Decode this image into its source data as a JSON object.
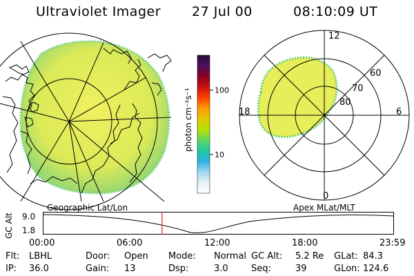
{
  "header": {
    "title": "Ultraviolet Imager",
    "date": "27 Jul 00",
    "time": "08:10:09 UT"
  },
  "colorbar": {
    "unit_label": "photon cm⁻²s⁻¹",
    "ticks": [
      {
        "label": "100",
        "value": 100
      },
      {
        "label": "10",
        "value": 10
      }
    ],
    "colors": [
      "#2a0a3a",
      "#4a1060",
      "#8a0020",
      "#cc1010",
      "#ff4000",
      "#ff9a00",
      "#e0c800",
      "#b8e000",
      "#60d860",
      "#20c8a0",
      "#30b0e0",
      "#a0d8f0",
      "#e6f0f8",
      "#ffffff"
    ]
  },
  "geo_map": {
    "label": "Geographic Lat/Lon",
    "fill_color": "#e6ee5a",
    "edge_color": "#5fc878"
  },
  "polar_map": {
    "label": "Apex MLat/MLT",
    "mlt_labels": [
      {
        "text": "12",
        "pos": "top"
      },
      {
        "text": "18",
        "pos": "left"
      },
      {
        "text": "6",
        "pos": "right"
      },
      {
        "text": "0",
        "pos": "bottom"
      }
    ],
    "lat_labels": [
      "60",
      "70",
      "80"
    ]
  },
  "timeline": {
    "y_label": "GC Alt",
    "y_ticks": [
      "9.0",
      "1.8"
    ],
    "x_ticks": [
      "00:00",
      "06:00",
      "12:00",
      "18:00",
      "23:59"
    ],
    "current_time_fraction": 0.3403
  },
  "info": {
    "row1": [
      {
        "key": "Flt:",
        "value": "LBHL"
      },
      {
        "key": "Door:",
        "value": "Open"
      },
      {
        "key": "Mode:",
        "value": "Normal"
      },
      {
        "key": "GC Alt:",
        "value": "5.2 Re"
      },
      {
        "key": "GLat:",
        "value": "84.3"
      }
    ],
    "row2": [
      {
        "key": "IP:",
        "value": "36.0"
      },
      {
        "key": "Gain:",
        "value": "13"
      },
      {
        "key": "Dsp:",
        "value": "3.0"
      },
      {
        "key": "Seq:",
        "value": "39"
      },
      {
        "key": "GLon:",
        "value": "124.6"
      }
    ]
  }
}
